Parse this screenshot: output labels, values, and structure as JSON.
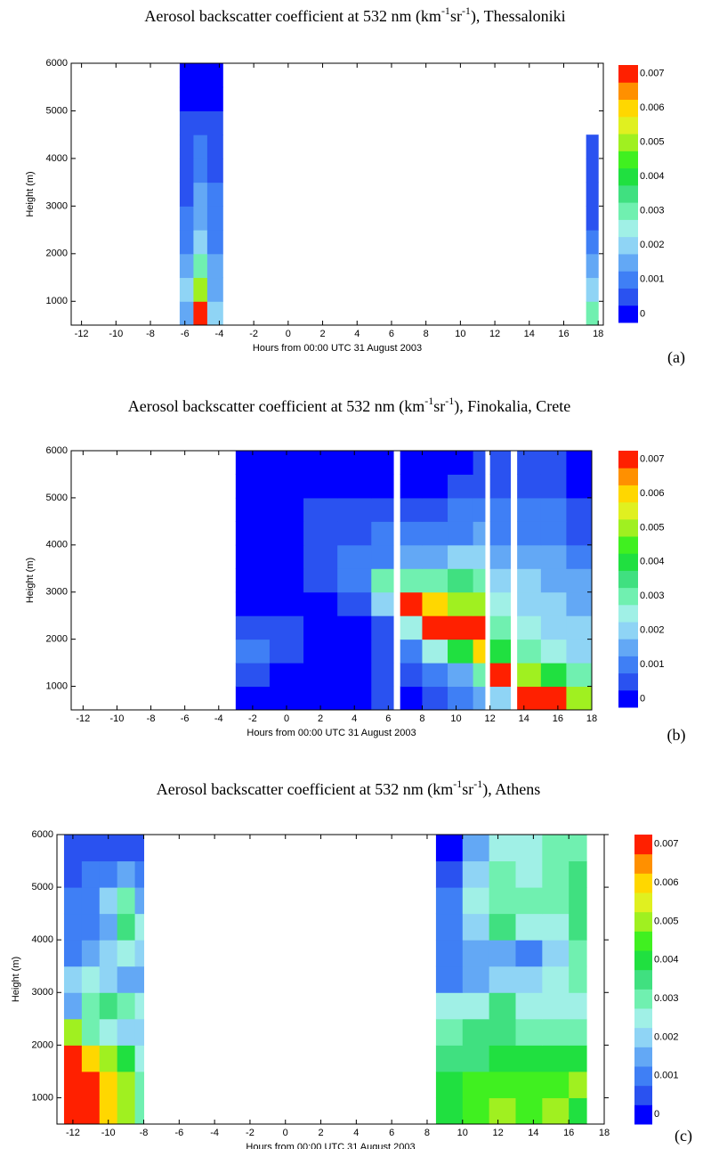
{
  "chart_data": [
    {
      "type": "heatmap",
      "title": [
        "Aerosol backscatter coefficient at 532 nm (km",
        "-1",
        "sr",
        "-1",
        "), Thessaloniki"
      ],
      "panel_label": "(a)",
      "xlabel": "Hours from 00:00 UTC 31 August 2003",
      "ylabel": "Height (m)",
      "xlim": [
        -12.6,
        18.3
      ],
      "xticks": [
        -12,
        -10,
        -8,
        -6,
        -4,
        -2,
        0,
        2,
        4,
        6,
        8,
        10,
        12,
        14,
        16,
        18
      ],
      "ylim": [
        500,
        6000
      ],
      "yticks": [
        1000,
        2000,
        3000,
        4000,
        5000,
        6000
      ],
      "xbins": [
        -6.3,
        -5.5,
        -4.7,
        -3.8,
        17.3,
        18
      ],
      "ybins": [
        500,
        1000,
        1500,
        2000,
        2500,
        3000,
        3500,
        4000,
        4500,
        5000,
        5500,
        6000
      ],
      "z": [
        [
          0.0015,
          0.007,
          0.002,
          null,
          0.003
        ],
        [
          0.002,
          0.005,
          0.0015,
          null,
          0.002
        ],
        [
          0.0015,
          0.003,
          0.0015,
          null,
          0.0015
        ],
        [
          0.001,
          0.002,
          0.0012,
          null,
          0.001
        ],
        [
          0.001,
          0.0015,
          0.001,
          null,
          0.0009
        ],
        [
          0.0008,
          0.0015,
          0.001,
          null,
          0.0008
        ],
        [
          0.0008,
          0.0012,
          0.0009,
          null,
          0.0008
        ],
        [
          0.0008,
          0.001,
          0.0008,
          null,
          0.0007
        ],
        [
          0.0005,
          0.0008,
          0.0006,
          null,
          null
        ],
        [
          0.0003,
          0.0004,
          0.0003,
          null,
          null
        ],
        [
          0.0002,
          0.0002,
          0.0002,
          null,
          null
        ]
      ],
      "zlim": [
        0,
        0.0075
      ],
      "colors": [
        "#0000ff",
        "#2a52f0",
        "#3f7ff5",
        "#63a8f5",
        "#8fd4f5",
        "#a0f0e6",
        "#70f0b0",
        "#40e080",
        "#20e040",
        "#40f020",
        "#a0f020",
        "#e0f020",
        "#ffd700",
        "#ff9000",
        "#ff2000"
      ],
      "cticks": [
        0,
        0.001,
        0.002,
        0.003,
        0.004,
        0.005,
        0.006,
        0.007
      ]
    },
    {
      "type": "heatmap",
      "title": [
        "Aerosol backscatter coefficient at 532 nm (km",
        "-1",
        "sr",
        "-1",
        "), Finokalia, Crete"
      ],
      "panel_label": "(b)",
      "xlabel": "Hours from 00:00 UTC 31 August 2003",
      "ylabel": "Height (m)",
      "xlim": [
        -12.7,
        18
      ],
      "xticks": [
        -12,
        -10,
        -8,
        -6,
        -4,
        -2,
        0,
        2,
        4,
        6,
        8,
        10,
        12,
        14,
        16,
        18
      ],
      "ylim": [
        500,
        6000
      ],
      "yticks": [
        1000,
        2000,
        3000,
        4000,
        5000,
        6000
      ],
      "xbins": [
        -3,
        -1,
        1,
        3,
        5,
        6.3,
        6.7,
        8,
        9.5,
        11,
        11.7,
        12,
        13.2,
        13.6,
        15,
        16.5,
        18
      ],
      "ybins": [
        500,
        1000,
        1500,
        2000,
        2500,
        3000,
        3500,
        4000,
        4500,
        5000,
        5500,
        6000
      ],
      "z": [
        [
          0.0003,
          0.0003,
          0.0003,
          0.0004,
          0.0005,
          null,
          0.0004,
          0.0006,
          0.0012,
          0.0015,
          null,
          0.002,
          null,
          0.007,
          0.0075,
          0.005
        ],
        [
          0.0005,
          0.0004,
          0.0004,
          0.0004,
          0.0006,
          null,
          0.0006,
          0.001,
          0.0018,
          0.003,
          null,
          0.0075,
          null,
          0.005,
          0.004,
          0.003
        ],
        [
          0.001,
          0.0008,
          0.0004,
          0.0004,
          0.0005,
          null,
          0.001,
          0.0025,
          0.004,
          0.006,
          null,
          0.004,
          null,
          0.003,
          0.0025,
          0.0022
        ],
        [
          0.0009,
          0.0005,
          0.0003,
          0.0004,
          0.0008,
          null,
          0.0025,
          0.0075,
          0.0075,
          0.0075,
          null,
          0.003,
          null,
          0.0025,
          0.002,
          0.002
        ],
        [
          0.0003,
          0.0003,
          0.0004,
          0.0008,
          0.002,
          null,
          0.0075,
          0.006,
          0.005,
          0.005,
          null,
          0.0025,
          null,
          0.002,
          0.002,
          0.0018
        ],
        [
          0.0003,
          0.0003,
          0.0006,
          0.0012,
          0.003,
          null,
          0.003,
          0.003,
          0.0035,
          0.003,
          null,
          0.002,
          null,
          0.002,
          0.0018,
          0.0015
        ],
        [
          0.0002,
          0.0003,
          0.0007,
          0.0011,
          0.0012,
          null,
          0.0015,
          0.0018,
          0.002,
          0.002,
          null,
          0.0016,
          null,
          0.0016,
          0.0015,
          0.0012
        ],
        [
          0.0002,
          0.0003,
          0.0009,
          0.0009,
          0.001,
          null,
          0.001,
          0.0013,
          0.0014,
          0.0015,
          null,
          0.0012,
          null,
          0.0014,
          0.0013,
          0.0009
        ],
        [
          0.0002,
          0.0003,
          0.0008,
          0.0008,
          0.0008,
          null,
          0.0007,
          0.0009,
          0.001,
          0.0012,
          null,
          0.001,
          null,
          0.0012,
          0.001,
          0.0005
        ],
        [
          0.0002,
          0.0002,
          0.0003,
          0.0004,
          0.0004,
          null,
          0.0004,
          0.0004,
          0.0006,
          0.0008,
          null,
          0.0009,
          null,
          0.0009,
          0.0007,
          0.0003
        ],
        [
          0.0002,
          0.0002,
          0.0002,
          0.0003,
          0.0003,
          null,
          0.0003,
          0.0003,
          0.0003,
          0.0006,
          null,
          0.0006,
          null,
          0.0008,
          0.0006,
          0.0002
        ]
      ],
      "zlim": [
        0,
        0.0075
      ],
      "colors": [
        "#0000ff",
        "#2a52f0",
        "#3f7ff5",
        "#63a8f5",
        "#8fd4f5",
        "#a0f0e6",
        "#70f0b0",
        "#40e080",
        "#20e040",
        "#40f020",
        "#a0f020",
        "#e0f020",
        "#ffd700",
        "#ff9000",
        "#ff2000"
      ],
      "cticks": [
        0,
        0.001,
        0.002,
        0.003,
        0.004,
        0.005,
        0.006,
        0.007
      ]
    },
    {
      "type": "heatmap",
      "title": [
        "Aerosol backscatter coefficient at 532 nm (km",
        "-1",
        "sr",
        "-1",
        "), Athens"
      ],
      "panel_label": "(c)",
      "xlabel": "Hours from 00:00 UTC 31 August 2003",
      "ylabel": "Height (m)",
      "xlim": [
        -12.9,
        18
      ],
      "xticks": [
        -12,
        -10,
        -8,
        -6,
        -4,
        -2,
        0,
        2,
        4,
        6,
        8,
        10,
        12,
        14,
        16,
        18
      ],
      "ylim": [
        500,
        6000
      ],
      "yticks": [
        1000,
        2000,
        3000,
        4000,
        5000,
        6000
      ],
      "xbins": [
        -12.5,
        -11.5,
        -10.5,
        -9.5,
        -8.5,
        -8,
        8.5,
        10,
        11.5,
        13,
        14.5,
        16,
        17
      ],
      "ybins": [
        500,
        1000,
        1500,
        2000,
        2500,
        3000,
        3500,
        4000,
        4500,
        5000,
        5500,
        6000
      ],
      "z": [
        [
          0.007,
          0.0075,
          0.006,
          0.005,
          0.003,
          null,
          0.004,
          0.0045,
          0.005,
          0.0045,
          0.005,
          0.004
        ],
        [
          0.0075,
          0.007,
          0.006,
          0.005,
          0.003,
          null,
          0.004,
          0.0045,
          0.0045,
          0.0045,
          0.0045,
          0.005
        ],
        [
          0.007,
          0.006,
          0.005,
          0.004,
          0.0025,
          null,
          0.0035,
          0.0038,
          0.004,
          0.004,
          0.004,
          0.004
        ],
        [
          0.005,
          0.003,
          0.0025,
          0.002,
          0.002,
          null,
          0.003,
          0.0035,
          0.0035,
          0.0032,
          0.003,
          0.003
        ],
        [
          0.0015,
          0.003,
          0.0035,
          0.003,
          0.0025,
          null,
          0.0025,
          0.0025,
          0.0035,
          0.0025,
          0.0025,
          0.0025
        ],
        [
          0.002,
          0.0025,
          0.002,
          0.0018,
          0.0015,
          null,
          0.0014,
          0.0018,
          0.002,
          0.0022,
          0.0025,
          0.003
        ],
        [
          0.0012,
          0.0015,
          0.002,
          0.0025,
          0.002,
          null,
          0.0012,
          0.0015,
          0.0018,
          0.0012,
          0.002,
          0.003
        ],
        [
          0.001,
          0.0012,
          0.0015,
          0.0035,
          0.0025,
          null,
          0.0012,
          0.002,
          0.0035,
          0.0025,
          0.0025,
          0.0035
        ],
        [
          0.001,
          0.0012,
          0.002,
          0.003,
          0.0018,
          null,
          0.001,
          0.0025,
          0.003,
          0.003,
          0.003,
          0.0035
        ],
        [
          0.0008,
          0.001,
          0.0012,
          0.0015,
          0.0012,
          null,
          0.0005,
          0.002,
          0.003,
          0.0025,
          0.003,
          0.0035
        ],
        [
          0.0005,
          0.0008,
          0.0008,
          0.0009,
          0.0009,
          null,
          0.0004,
          0.0015,
          0.0025,
          0.0025,
          0.003,
          0.003
        ]
      ],
      "zlim": [
        0,
        0.0075
      ],
      "colors": [
        "#0000ff",
        "#2a52f0",
        "#3f7ff5",
        "#63a8f5",
        "#8fd4f5",
        "#a0f0e6",
        "#70f0b0",
        "#40e080",
        "#20e040",
        "#40f020",
        "#a0f020",
        "#e0f020",
        "#ffd700",
        "#ff9000",
        "#ff2000"
      ],
      "cticks": [
        0,
        0.001,
        0.002,
        0.003,
        0.004,
        0.005,
        0.006,
        0.007
      ]
    }
  ]
}
